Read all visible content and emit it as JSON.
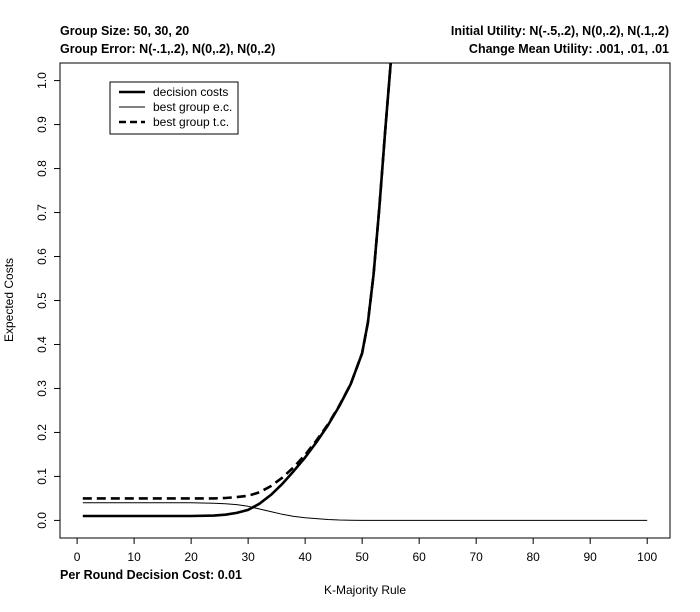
{
  "header": {
    "top_left_1": "Group Size: 50, 30, 20",
    "top_left_2": "Group Error: N(-.1,.2), N(0,.2), N(0,.2)",
    "top_right_1": "Initial Utility: N(-.5,.2), N(0,.2), N(.1,.2)",
    "top_right_2": "Change Mean Utility: .001, .01, .01",
    "bottom_left": "Per Round Decision Cost: 0.01"
  },
  "chart_data": {
    "type": "line",
    "xlabel": "K-Majority Rule",
    "ylabel": "Expected Costs",
    "xlim": [
      -3,
      104
    ],
    "ylim": [
      -0.04,
      1.04
    ],
    "xticks": [
      0,
      10,
      20,
      30,
      40,
      50,
      60,
      70,
      80,
      90,
      100
    ],
    "yticks": [
      0.0,
      0.1,
      0.2,
      0.3,
      0.4,
      0.5,
      0.6,
      0.7,
      0.8,
      0.9,
      1.0
    ],
    "ytick_labels": [
      "0.0",
      "0.1",
      "0.2",
      "0.3",
      "0.4",
      "0.5",
      "0.6",
      "0.7",
      "0.8",
      "0.9",
      "1.0"
    ],
    "legend_position": "top-left",
    "series": [
      {
        "name": "decision costs",
        "style": "solid",
        "weight": "thick",
        "x": [
          1,
          10,
          20,
          24,
          26,
          28,
          30,
          32,
          34,
          36,
          38,
          40,
          42,
          44,
          46,
          48,
          50,
          51,
          52,
          53,
          54,
          55
        ],
        "y": [
          0.01,
          0.01,
          0.01,
          0.011,
          0.013,
          0.017,
          0.024,
          0.038,
          0.058,
          0.083,
          0.112,
          0.143,
          0.178,
          0.216,
          0.26,
          0.31,
          0.38,
          0.45,
          0.56,
          0.71,
          0.88,
          1.04
        ]
      },
      {
        "name": "best group e.c.",
        "style": "solid",
        "weight": "thin",
        "x": [
          1,
          10,
          20,
          24,
          26,
          28,
          30,
          32,
          34,
          36,
          38,
          40,
          42,
          44,
          46,
          48,
          50,
          55,
          60,
          70,
          80,
          90,
          100
        ],
        "y": [
          0.04,
          0.04,
          0.04,
          0.039,
          0.038,
          0.036,
          0.032,
          0.026,
          0.02,
          0.014,
          0.009,
          0.006,
          0.004,
          0.002,
          0.001,
          0.0005,
          0.0,
          0.0,
          0.0,
          0.0,
          0.0,
          0.0,
          0.0
        ]
      },
      {
        "name": "best group t.c.",
        "style": "dashed",
        "weight": "thick",
        "x": [
          1,
          10,
          20,
          24,
          26,
          28,
          30,
          32,
          34,
          36,
          38,
          40,
          42,
          44,
          46,
          48,
          50,
          51,
          52,
          53,
          54,
          55
        ],
        "y": [
          0.05,
          0.05,
          0.05,
          0.05,
          0.051,
          0.053,
          0.056,
          0.064,
          0.078,
          0.097,
          0.121,
          0.149,
          0.182,
          0.218,
          0.261,
          0.31,
          0.38,
          0.45,
          0.56,
          0.71,
          0.88,
          1.04
        ]
      }
    ]
  }
}
